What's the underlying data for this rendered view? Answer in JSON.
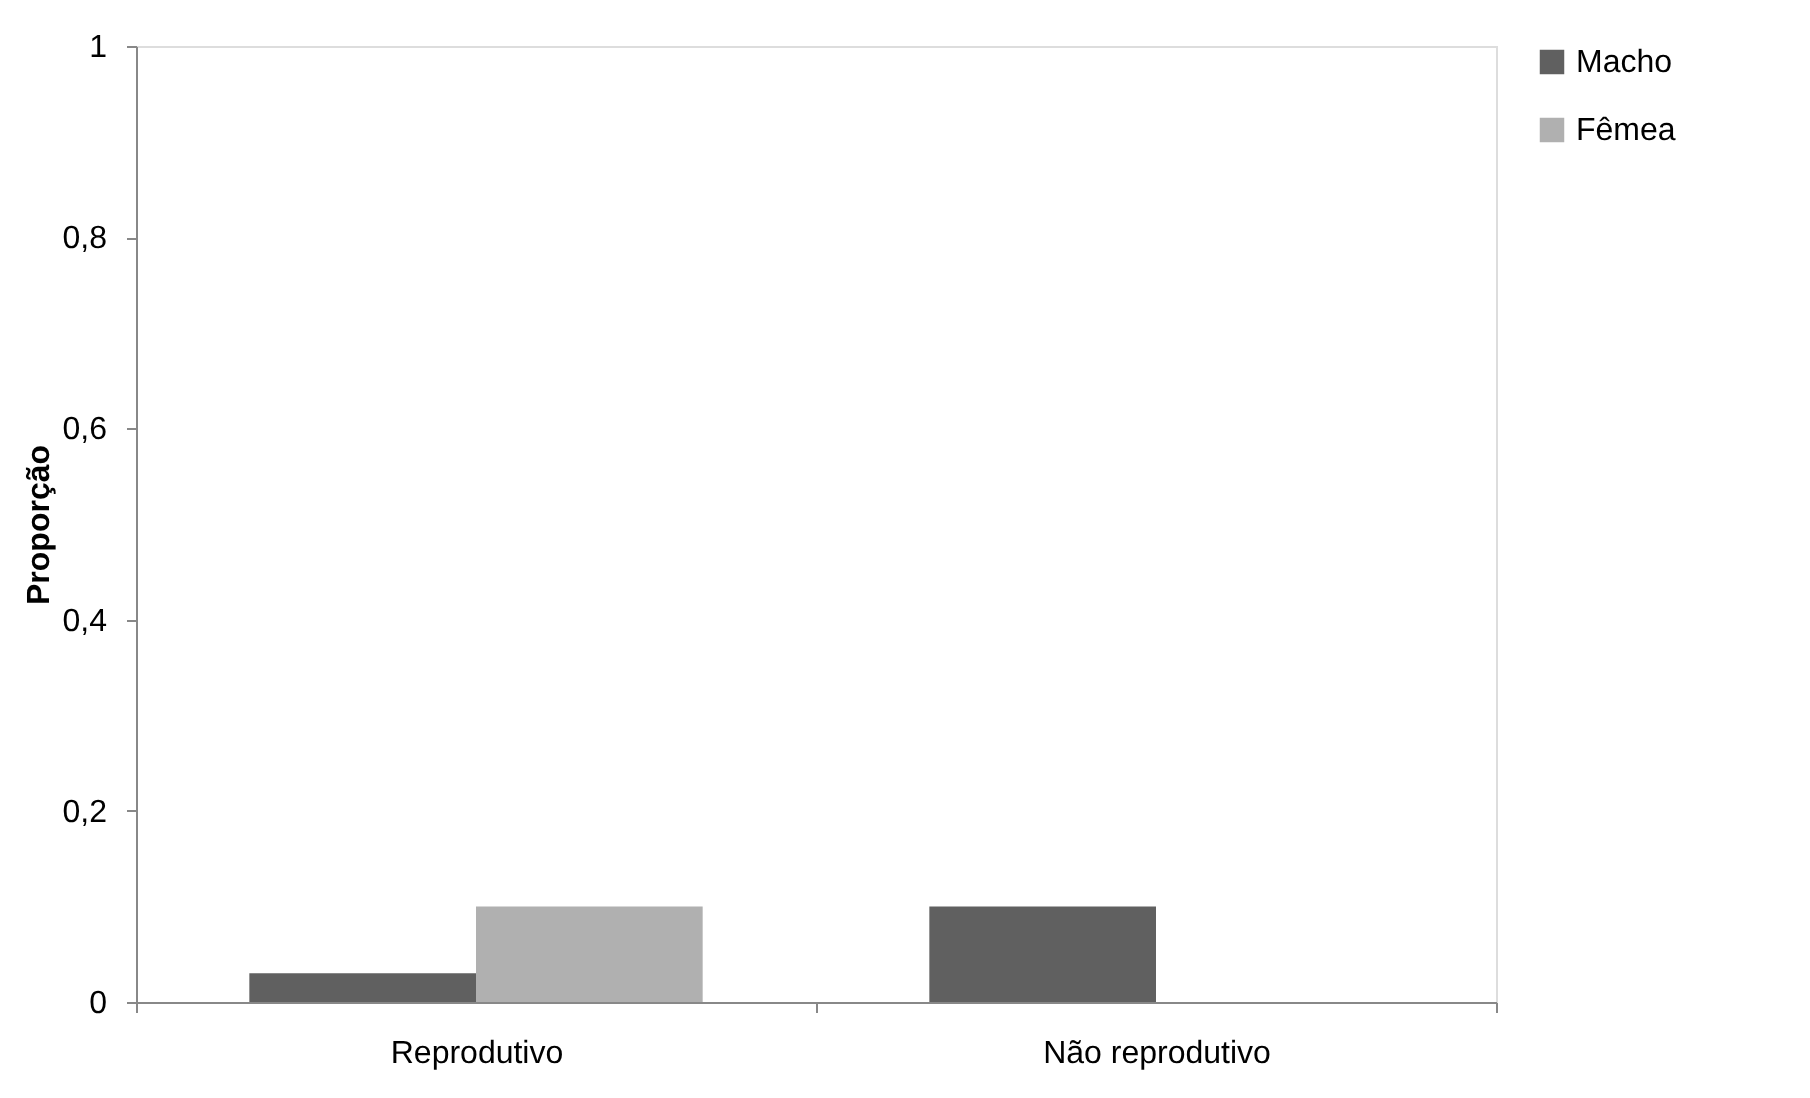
{
  "chart_data": {
    "type": "bar",
    "ylabel": "Proporção",
    "categories": [
      "Reprodutivo",
      "Não reprodutivo"
    ],
    "series": [
      {
        "name": "Macho",
        "color": "#606060",
        "values": [
          0.03,
          0.1
        ]
      },
      {
        "name": "Fêmea",
        "color": "#b0b0b0",
        "values": [
          0.1,
          0
        ]
      }
    ],
    "ylim": [
      0,
      1
    ],
    "yticks": [
      {
        "value": 0,
        "label": "0"
      },
      {
        "value": 0.2,
        "label": "0,2"
      },
      {
        "value": 0.4,
        "label": "0,4"
      },
      {
        "value": 0.6,
        "label": "0,6"
      },
      {
        "value": 0.8,
        "label": "0,8"
      },
      {
        "value": 1,
        "label": "1"
      }
    ],
    "grid": false,
    "legend": "right"
  }
}
